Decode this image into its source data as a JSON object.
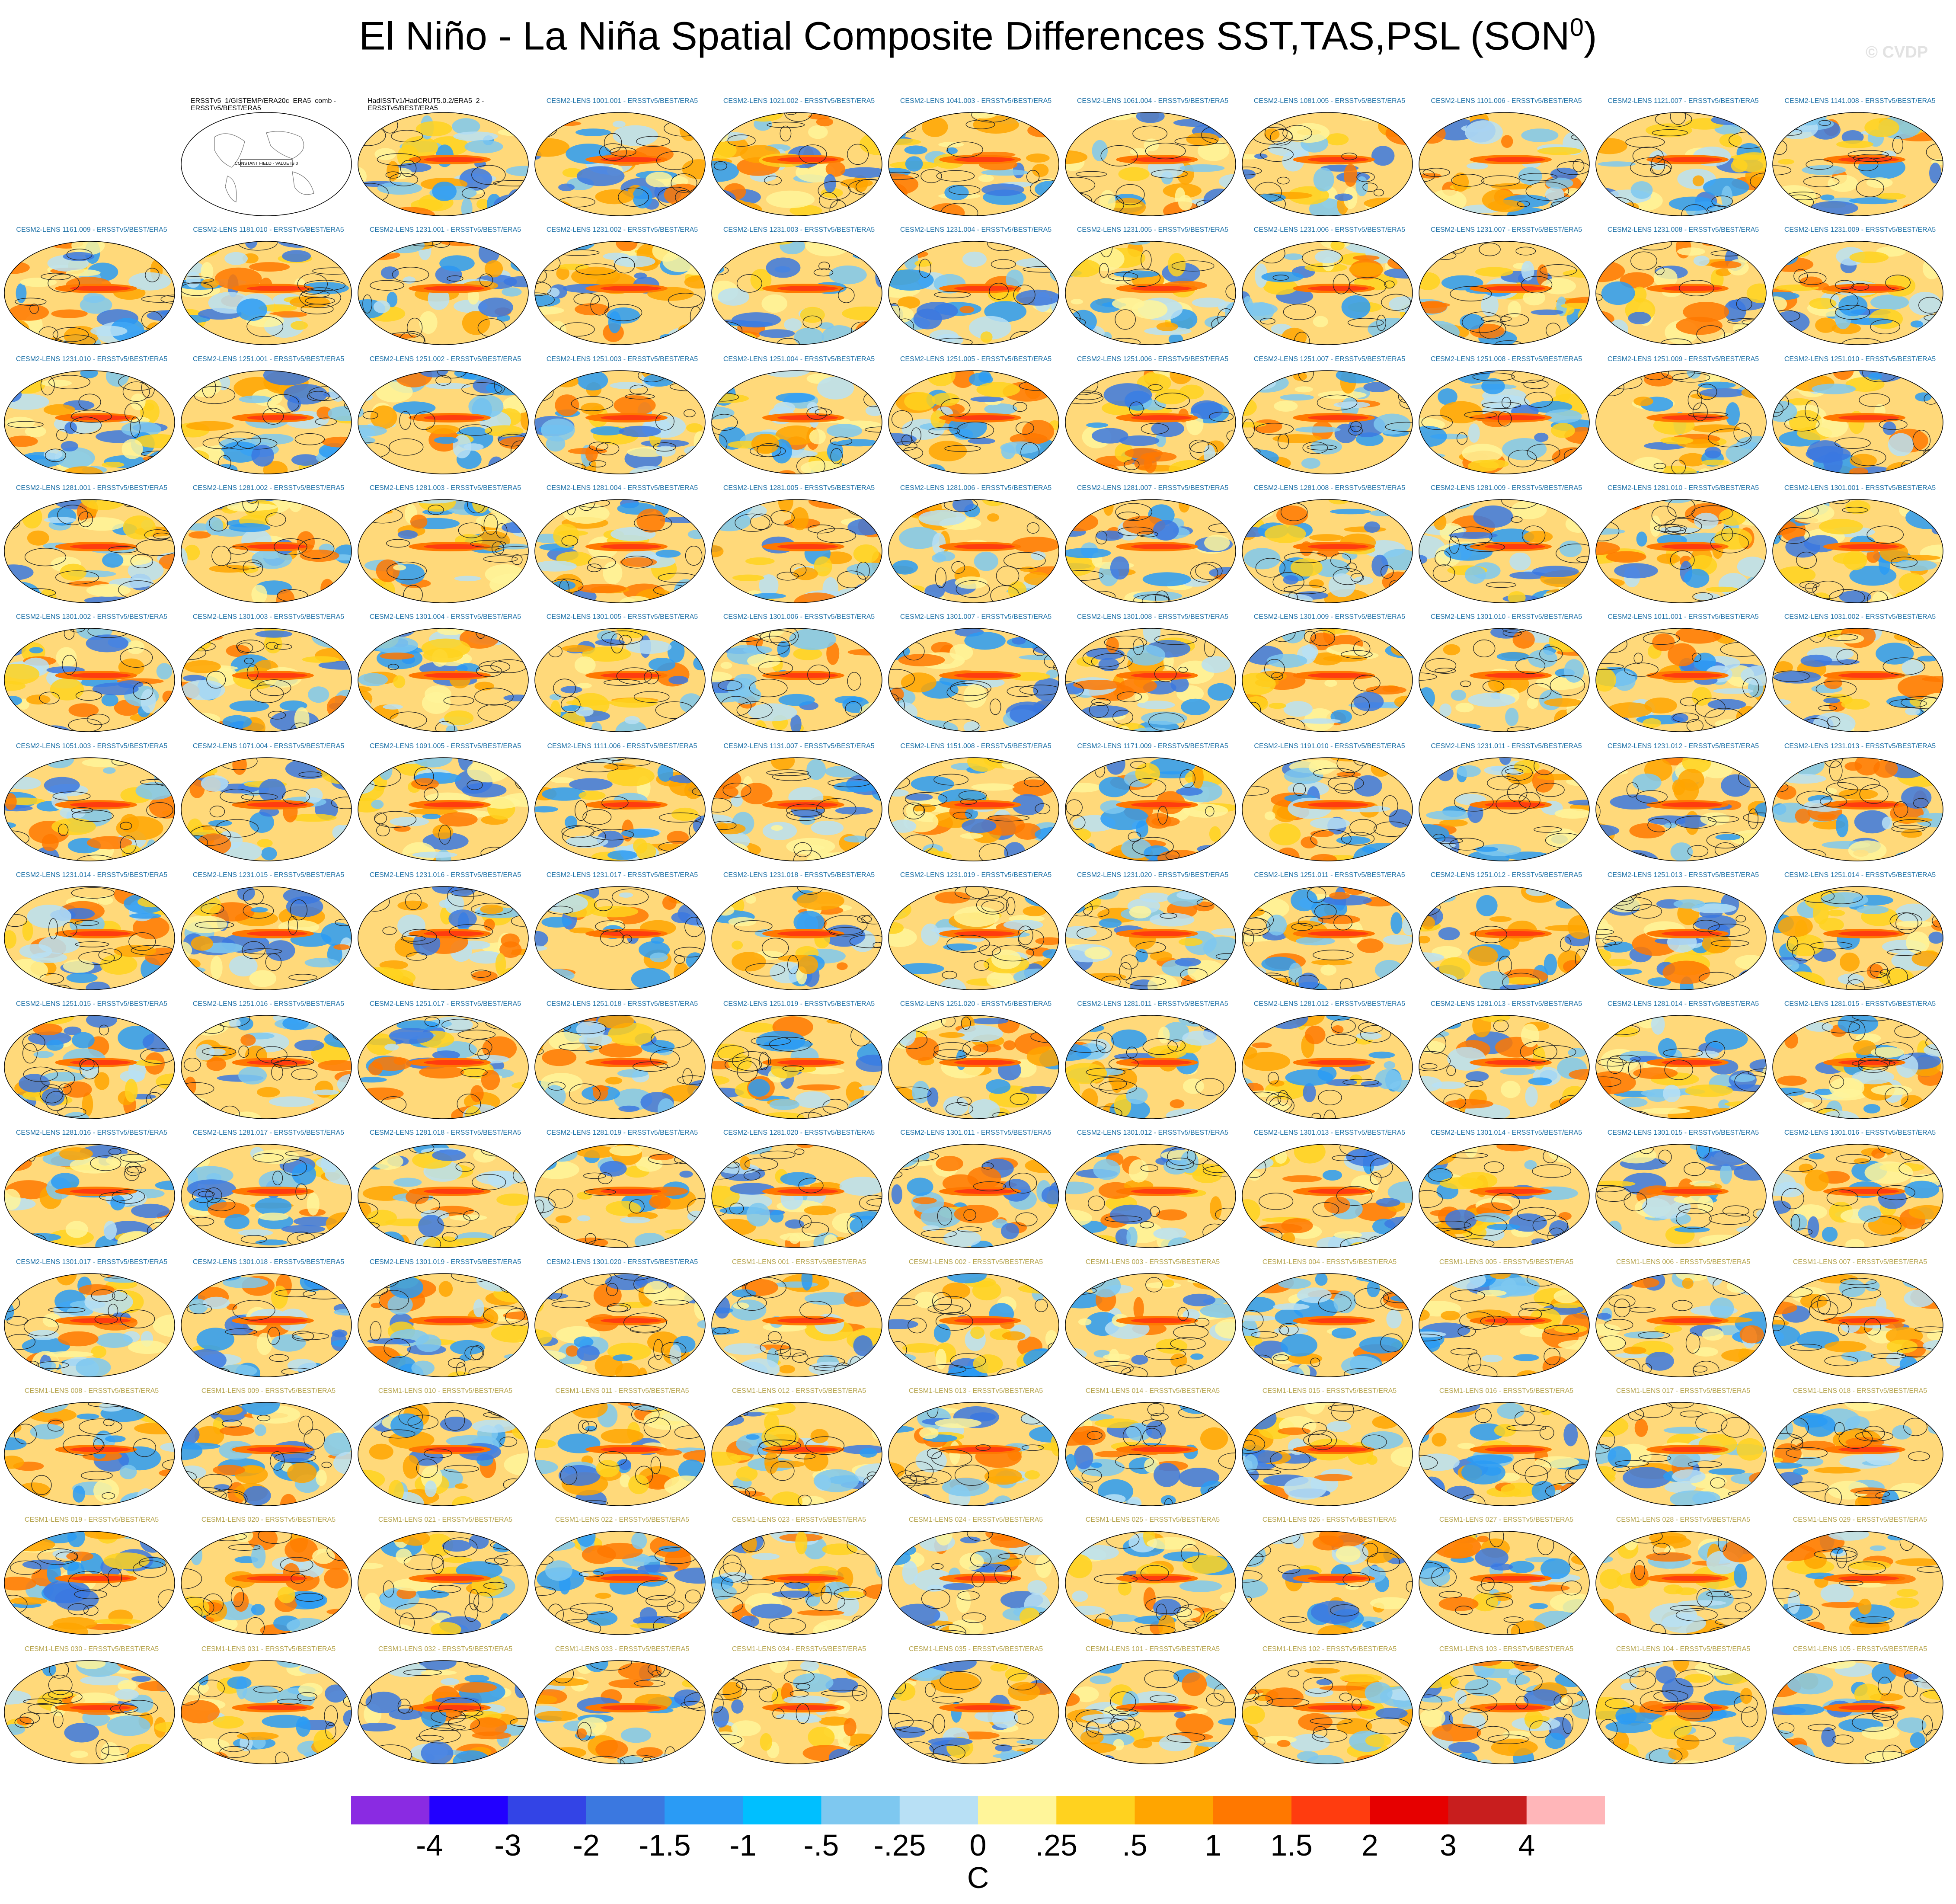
{
  "title": "El Niño - La Niña Spatial Composite Differences SST,TAS,PSL (SON",
  "title_superscript": "0",
  "watermark": "© CVDP",
  "colors": {
    "cesm2_label": "#1a6fa6",
    "cesm1_label": "#b4a24a",
    "obs_label": "#000000"
  },
  "chart_data": {
    "type": "heatmap",
    "description_type": "panel grid of global maps (shaded SST/TAS composite, PSL contours)",
    "panel_labels": [
      "ERSSTv5_1/GISTEMP/ERA20c_ERA5_comb - ERSSTv5/BEST/ERA5",
      "HadISSTv1/HadCRUT5.0.2/ERA5_2 - ERSSTv5/BEST/ERA5",
      "CESM2-LENS 1001.001 - ERSSTv5/BEST/ERA5",
      "CESM2-LENS 1021.002 - ERSSTv5/BEST/ERA5",
      "CESM2-LENS 1041.003 - ERSSTv5/BEST/ERA5",
      "CESM2-LENS 1061.004 - ERSSTv5/BEST/ERA5",
      "CESM2-LENS 1081.005 - ERSSTv5/BEST/ERA5",
      "CESM2-LENS 1101.006 - ERSSTv5/BEST/ERA5",
      "CESM2-LENS 1121.007 - ERSSTv5/BEST/ERA5",
      "CESM2-LENS 1141.008 - ERSSTv5/BEST/ERA5",
      "CESM2-LENS 1161.009 - ERSSTv5/BEST/ERA5",
      "CESM2-LENS 1181.010 - ERSSTv5/BEST/ERA5",
      "CESM2-LENS 1231.001 - ERSSTv5/BEST/ERA5",
      "CESM2-LENS 1231.002 - ERSSTv5/BEST/ERA5",
      "CESM2-LENS 1231.003 - ERSSTv5/BEST/ERA5",
      "CESM2-LENS 1231.004 - ERSSTv5/BEST/ERA5",
      "CESM2-LENS 1231.005 - ERSSTv5/BEST/ERA5",
      "CESM2-LENS 1231.006 - ERSSTv5/BEST/ERA5",
      "CESM2-LENS 1231.007 - ERSSTv5/BEST/ERA5",
      "CESM2-LENS 1231.008 - ERSSTv5/BEST/ERA5",
      "CESM2-LENS 1231.009 - ERSSTv5/BEST/ERA5",
      "CESM2-LENS 1231.010 - ERSSTv5/BEST/ERA5",
      "CESM2-LENS 1251.001 - ERSSTv5/BEST/ERA5",
      "CESM2-LENS 1251.002 - ERSSTv5/BEST/ERA5",
      "CESM2-LENS 1251.003 - ERSSTv5/BEST/ERA5",
      "CESM2-LENS 1251.004 - ERSSTv5/BEST/ERA5",
      "CESM2-LENS 1251.005 - ERSSTv5/BEST/ERA5",
      "CESM2-LENS 1251.006 - ERSSTv5/BEST/ERA5",
      "CESM2-LENS 1251.007 - ERSSTv5/BEST/ERA5",
      "CESM2-LENS 1251.008 - ERSSTv5/BEST/ERA5",
      "CESM2-LENS 1251.009 - ERSSTv5/BEST/ERA5",
      "CESM2-LENS 1251.010 - ERSSTv5/BEST/ERA5",
      "CESM2-LENS 1281.001 - ERSSTv5/BEST/ERA5",
      "CESM2-LENS 1281.002 - ERSSTv5/BEST/ERA5",
      "CESM2-LENS 1281.003 - ERSSTv5/BEST/ERA5",
      "CESM2-LENS 1281.004 - ERSSTv5/BEST/ERA5",
      "CESM2-LENS 1281.005 - ERSSTv5/BEST/ERA5",
      "CESM2-LENS 1281.006 - ERSSTv5/BEST/ERA5",
      "CESM2-LENS 1281.007 - ERSSTv5/BEST/ERA5",
      "CESM2-LENS 1281.008 - ERSSTv5/BEST/ERA5",
      "CESM2-LENS 1281.009 - ERSSTv5/BEST/ERA5",
      "CESM2-LENS 1281.010 - ERSSTv5/BEST/ERA5",
      "CESM2-LENS 1301.001 - ERSSTv5/BEST/ERA5",
      "CESM2-LENS 1301.002 - ERSSTv5/BEST/ERA5",
      "CESM2-LENS 1301.003 - ERSSTv5/BEST/ERA5",
      "CESM2-LENS 1301.004 - ERSSTv5/BEST/ERA5",
      "CESM2-LENS 1301.005 - ERSSTv5/BEST/ERA5",
      "CESM2-LENS 1301.006 - ERSSTv5/BEST/ERA5",
      "CESM2-LENS 1301.007 - ERSSTv5/BEST/ERA5",
      "CESM2-LENS 1301.008 - ERSSTv5/BEST/ERA5",
      "CESM2-LENS 1301.009 - ERSSTv5/BEST/ERA5",
      "CESM2-LENS 1301.010 - ERSSTv5/BEST/ERA5",
      "CESM2-LENS 1011.001 - ERSSTv5/BEST/ERA5",
      "CESM2-LENS 1031.002 - ERSSTv5/BEST/ERA5",
      "CESM2-LENS 1051.003 - ERSSTv5/BEST/ERA5",
      "CESM2-LENS 1071.004 - ERSSTv5/BEST/ERA5",
      "CESM2-LENS 1091.005 - ERSSTv5/BEST/ERA5",
      "CESM2-LENS 1111.006 - ERSSTv5/BEST/ERA5",
      "CESM2-LENS 1131.007 - ERSSTv5/BEST/ERA5",
      "CESM2-LENS 1151.008 - ERSSTv5/BEST/ERA5",
      "CESM2-LENS 1171.009 - ERSSTv5/BEST/ERA5",
      "CESM2-LENS 1191.010 - ERSSTv5/BEST/ERA5",
      "CESM2-LENS 1231.011 - ERSSTv5/BEST/ERA5",
      "CESM2-LENS 1231.012 - ERSSTv5/BEST/ERA5",
      "CESM2-LENS 1231.013 - ERSSTv5/BEST/ERA5",
      "CESM2-LENS 1231.014 - ERSSTv5/BEST/ERA5",
      "CESM2-LENS 1231.015 - ERSSTv5/BEST/ERA5",
      "CESM2-LENS 1231.016 - ERSSTv5/BEST/ERA5",
      "CESM2-LENS 1231.017 - ERSSTv5/BEST/ERA5",
      "CESM2-LENS 1231.018 - ERSSTv5/BEST/ERA5",
      "CESM2-LENS 1231.019 - ERSSTv5/BEST/ERA5",
      "CESM2-LENS 1231.020 - ERSSTv5/BEST/ERA5",
      "CESM2-LENS 1251.011 - ERSSTv5/BEST/ERA5",
      "CESM2-LENS 1251.012 - ERSSTv5/BEST/ERA5",
      "CESM2-LENS 1251.013 - ERSSTv5/BEST/ERA5",
      "CESM2-LENS 1251.014 - ERSSTv5/BEST/ERA5",
      "CESM2-LENS 1251.015 - ERSSTv5/BEST/ERA5",
      "CESM2-LENS 1251.016 - ERSSTv5/BEST/ERA5",
      "CESM2-LENS 1251.017 - ERSSTv5/BEST/ERA5",
      "CESM2-LENS 1251.018 - ERSSTv5/BEST/ERA5",
      "CESM2-LENS 1251.019 - ERSSTv5/BEST/ERA5",
      "CESM2-LENS 1251.020 - ERSSTv5/BEST/ERA5",
      "CESM2-LENS 1281.011 - ERSSTv5/BEST/ERA5",
      "CESM2-LENS 1281.012 - ERSSTv5/BEST/ERA5",
      "CESM2-LENS 1281.013 - ERSSTv5/BEST/ERA5",
      "CESM2-LENS 1281.014 - ERSSTv5/BEST/ERA5",
      "CESM2-LENS 1281.015 - ERSSTv5/BEST/ERA5",
      "CESM2-LENS 1281.016 - ERSSTv5/BEST/ERA5",
      "CESM2-LENS 1281.017 - ERSSTv5/BEST/ERA5",
      "CESM2-LENS 1281.018 - ERSSTv5/BEST/ERA5",
      "CESM2-LENS 1281.019 - ERSSTv5/BEST/ERA5",
      "CESM2-LENS 1281.020 - ERSSTv5/BEST/ERA5",
      "CESM2-LENS 1301.011 - ERSSTv5/BEST/ERA5",
      "CESM2-LENS 1301.012 - ERSSTv5/BEST/ERA5",
      "CESM2-LENS 1301.013 - ERSSTv5/BEST/ERA5",
      "CESM2-LENS 1301.014 - ERSSTv5/BEST/ERA5",
      "CESM2-LENS 1301.015 - ERSSTv5/BEST/ERA5",
      "CESM2-LENS 1301.016 - ERSSTv5/BEST/ERA5",
      "CESM2-LENS 1301.017 - ERSSTv5/BEST/ERA5",
      "CESM2-LENS 1301.018 - ERSSTv5/BEST/ERA5",
      "CESM2-LENS 1301.019 - ERSSTv5/BEST/ERA5",
      "CESM2-LENS 1301.020 - ERSSTv5/BEST/ERA5",
      "CESM1-LENS 001 - ERSSTv5/BEST/ERA5",
      "CESM1-LENS 002 - ERSSTv5/BEST/ERA5",
      "CESM1-LENS 003 - ERSSTv5/BEST/ERA5",
      "CESM1-LENS 004 - ERSSTv5/BEST/ERA5",
      "CESM1-LENS 005 - ERSSTv5/BEST/ERA5",
      "CESM1-LENS 006 - ERSSTv5/BEST/ERA5",
      "CESM1-LENS 007 - ERSSTv5/BEST/ERA5",
      "CESM1-LENS 008 - ERSSTv5/BEST/ERA5",
      "CESM1-LENS 009 - ERSSTv5/BEST/ERA5",
      "CESM1-LENS 010 - ERSSTv5/BEST/ERA5",
      "CESM1-LENS 011 - ERSSTv5/BEST/ERA5",
      "CESM1-LENS 012 - ERSSTv5/BEST/ERA5",
      "CESM1-LENS 013 - ERSSTv5/BEST/ERA5",
      "CESM1-LENS 014 - ERSSTv5/BEST/ERA5",
      "CESM1-LENS 015 - ERSSTv5/BEST/ERA5",
      "CESM1-LENS 016 - ERSSTv5/BEST/ERA5",
      "CESM1-LENS 017 - ERSSTv5/BEST/ERA5",
      "CESM1-LENS 018 - ERSSTv5/BEST/ERA5",
      "CESM1-LENS 019 - ERSSTv5/BEST/ERA5",
      "CESM1-LENS 020 - ERSSTv5/BEST/ERA5",
      "CESM1-LENS 021 - ERSSTv5/BEST/ERA5",
      "CESM1-LENS 022 - ERSSTv5/BEST/ERA5",
      "CESM1-LENS 023 - ERSSTv5/BEST/ERA5",
      "CESM1-LENS 024 - ERSSTv5/BEST/ERA5",
      "CESM1-LENS 025 - ERSSTv5/BEST/ERA5",
      "CESM1-LENS 026 - ERSSTv5/BEST/ERA5",
      "CESM1-LENS 027 - ERSSTv5/BEST/ERA5",
      "CESM1-LENS 028 - ERSSTv5/BEST/ERA5",
      "CESM1-LENS 029 - ERSSTv5/BEST/ERA5",
      "CESM1-LENS 030 - ERSSTv5/BEST/ERA5",
      "CESM1-LENS 031 - ERSSTv5/BEST/ERA5",
      "CESM1-LENS 032 - ERSSTv5/BEST/ERA5",
      "CESM1-LENS 033 - ERSSTv5/BEST/ERA5",
      "CESM1-LENS 034 - ERSSTv5/BEST/ERA5",
      "CESM1-LENS 035 - ERSSTv5/BEST/ERA5",
      "CESM1-LENS 101 - ERSSTv5/BEST/ERA5",
      "CESM1-LENS 102 - ERSSTv5/BEST/ERA5",
      "CESM1-LENS 103 - ERSSTv5/BEST/ERA5",
      "CESM1-LENS 104 - ERSSTv5/BEST/ERA5",
      "CESM1-LENS 105 - ERSSTv5/BEST/ERA5"
    ],
    "constant_field_note": "CONSTANT FIELD - VALUE IS 0",
    "colorbar": {
      "units": "C",
      "colors": [
        "#8a2be2",
        "#2200ff",
        "#3344e6",
        "#3b78e0",
        "#2a9bf5",
        "#00bfff",
        "#7ec8f0",
        "#b8e0f5",
        "#fff59a",
        "#ffd21f",
        "#ffa500",
        "#ff7800",
        "#ff3c0f",
        "#e60000",
        "#c81e1e",
        "#ffb6b9"
      ],
      "tick_labels": [
        "-4",
        "-3",
        "-2",
        "-1.5",
        "-1",
        "-.5",
        "-.25",
        "0",
        ".25",
        ".5",
        "1",
        "1.5",
        "2",
        "3",
        "4"
      ]
    }
  }
}
